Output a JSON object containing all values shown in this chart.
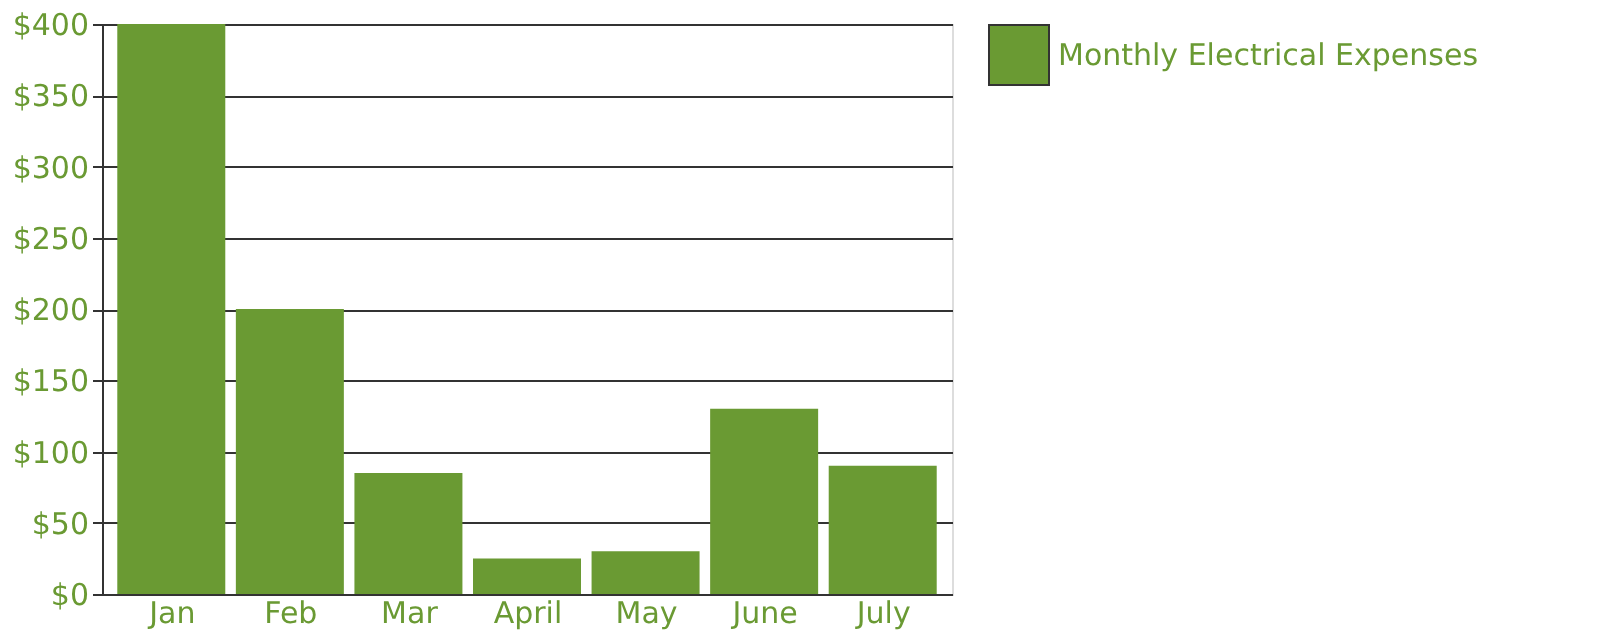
{
  "chart_data": {
    "type": "bar",
    "categories": [
      "Jan",
      "Feb",
      "Mar",
      "April",
      "May",
      "June",
      "July"
    ],
    "series": [
      {
        "name": "Monthly Electrical Expenses",
        "color": "#6a9a33",
        "values": [
          400,
          200,
          85,
          25,
          30,
          130,
          90
        ]
      }
    ],
    "ylim": [
      0,
      400
    ],
    "yticks": [
      {
        "value": 0,
        "label": "$0"
      },
      {
        "value": 50,
        "label": "$50"
      },
      {
        "value": 100,
        "label": "$100"
      },
      {
        "value": 150,
        "label": "$150"
      },
      {
        "value": 200,
        "label": "$200"
      },
      {
        "value": 250,
        "label": "$250"
      },
      {
        "value": 300,
        "label": "$300"
      },
      {
        "value": 350,
        "label": "$350"
      },
      {
        "value": 400,
        "label": "$400"
      }
    ],
    "grid": "y",
    "legend": "top right"
  }
}
